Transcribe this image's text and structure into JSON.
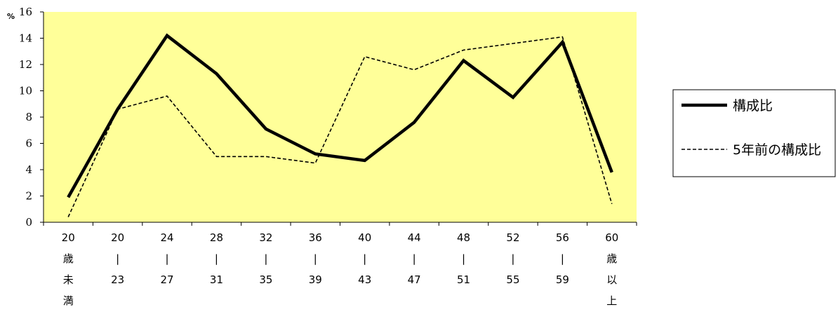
{
  "chart_data": {
    "type": "line",
    "y_unit": "%",
    "ylim": [
      0,
      16
    ],
    "yticks": [
      0,
      2,
      4,
      6,
      8,
      10,
      12,
      14,
      16
    ],
    "categories": [
      [
        "20",
        "歳",
        "未",
        "満"
      ],
      [
        "20",
        "|",
        "23"
      ],
      [
        "24",
        "|",
        "27"
      ],
      [
        "28",
        "|",
        "31"
      ],
      [
        "32",
        "|",
        "35"
      ],
      [
        "36",
        "|",
        "39"
      ],
      [
        "40",
        "|",
        "43"
      ],
      [
        "44",
        "|",
        "47"
      ],
      [
        "48",
        "|",
        "51"
      ],
      [
        "52",
        "|",
        "55"
      ],
      [
        "56",
        "|",
        "59"
      ],
      [
        "60",
        "歳",
        "以",
        "上"
      ]
    ],
    "series": [
      {
        "name": "構成比",
        "style": "solid",
        "color": "#000000",
        "values": [
          1.9,
          8.6,
          14.2,
          11.3,
          7.1,
          5.2,
          4.7,
          7.6,
          12.3,
          9.5,
          13.7,
          3.8
        ]
      },
      {
        "name": "5年前の構成比",
        "style": "dashed",
        "color": "#000000",
        "values": [
          0.4,
          8.6,
          9.6,
          5.0,
          5.0,
          4.5,
          12.6,
          11.6,
          13.1,
          13.6,
          14.1,
          1.4
        ]
      }
    ],
    "grid": false,
    "legend_position": "right",
    "plot_background": "#ffff99"
  }
}
